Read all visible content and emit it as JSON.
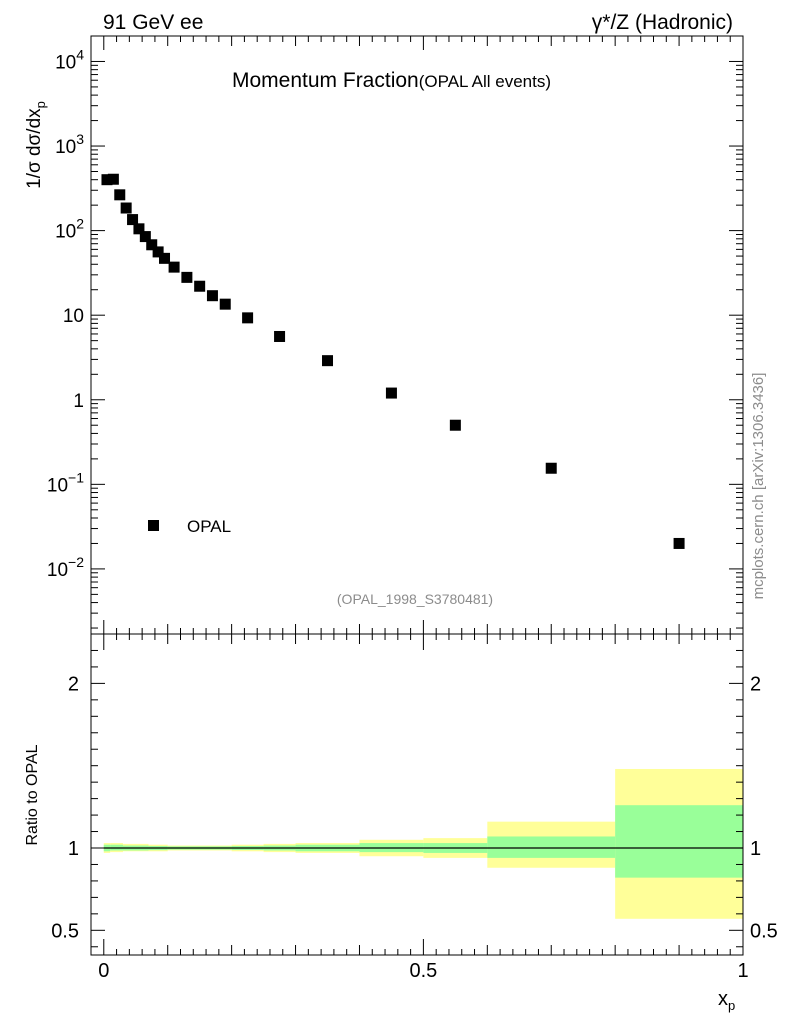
{
  "header": {
    "left": "91 GeV ee",
    "right": "γ*/Z (Hadronic)"
  },
  "plot_title": {
    "main": "Momentum Fraction",
    "sub": "(OPAL All events)"
  },
  "reference": "(OPAL_1998_S3780481)",
  "side_label": "mcplots.cern.ch [arXiv:1306.3436]",
  "axes": {
    "main_ylabel": {
      "base": "1/σ dσ/dx",
      "sub": "p"
    },
    "ratio_ylabel": "Ratio to OPAL",
    "xlabel": {
      "base": "x",
      "sub": "p"
    }
  },
  "colors": {
    "band_outer": "#ffff99",
    "band_inner": "#99ff99",
    "marker": "#000000",
    "text_grey": "#8c8c8c"
  },
  "chart_data": [
    {
      "type": "scatter",
      "name": "main",
      "yscale": "log",
      "xlim": [
        -0.02,
        1.0
      ],
      "ylim": [
        0.0017,
        20000
      ],
      "yticks_major": [
        {
          "value": 0.01,
          "base": "10",
          "exp": "−2"
        },
        {
          "value": 0.1,
          "base": "10",
          "exp": "−1"
        },
        {
          "value": 1,
          "base": "1",
          "exp": ""
        },
        {
          "value": 10,
          "base": "10",
          "exp": ""
        },
        {
          "value": 100,
          "base": "10",
          "exp": "2"
        },
        {
          "value": 1000,
          "base": "10",
          "exp": "3"
        },
        {
          "value": 10000,
          "base": "10",
          "exp": "4"
        }
      ],
      "legend": {
        "label": "OPAL",
        "placement": "bottom-left"
      },
      "series": [
        {
          "name": "OPAL",
          "x": [
            0.005,
            0.015,
            0.025,
            0.035,
            0.045,
            0.055,
            0.065,
            0.075,
            0.085,
            0.095,
            0.11,
            0.13,
            0.15,
            0.17,
            0.19,
            0.225,
            0.275,
            0.35,
            0.45,
            0.55,
            0.7,
            0.9
          ],
          "y": [
            400,
            405,
            265,
            185,
            135,
            105,
            85,
            68,
            56,
            47,
            37,
            28,
            22,
            17,
            13.5,
            9.3,
            5.6,
            2.9,
            1.2,
            0.5,
            0.155,
            0.02
          ]
        }
      ]
    },
    {
      "type": "area",
      "name": "ratio",
      "xlim": [
        -0.02,
        1.0
      ],
      "ylim": [
        0.35,
        2.3
      ],
      "yticks": [
        0.5,
        1,
        2
      ],
      "ytick_labels": [
        "0.5",
        "1",
        "2"
      ],
      "xticks": [
        0,
        0.5,
        1
      ],
      "xtick_labels": [
        "0",
        "0.5",
        "1"
      ],
      "reference_line": 1,
      "bands": [
        {
          "x0": 0.0,
          "x1": 0.01,
          "outer": [
            0.97,
            1.03
          ],
          "inner": [
            0.98,
            1.02
          ]
        },
        {
          "x0": 0.01,
          "x1": 0.03,
          "outer": [
            0.975,
            1.03
          ],
          "inner": [
            0.985,
            1.02
          ]
        },
        {
          "x0": 0.03,
          "x1": 0.07,
          "outer": [
            0.98,
            1.025
          ],
          "inner": [
            0.985,
            1.015
          ]
        },
        {
          "x0": 0.07,
          "x1": 0.1,
          "outer": [
            0.98,
            1.02
          ],
          "inner": [
            0.987,
            1.012
          ]
        },
        {
          "x0": 0.1,
          "x1": 0.2,
          "outer": [
            0.985,
            1.015
          ],
          "inner": [
            0.99,
            1.01
          ]
        },
        {
          "x0": 0.2,
          "x1": 0.25,
          "outer": [
            0.98,
            1.02
          ],
          "inner": [
            0.988,
            1.012
          ]
        },
        {
          "x0": 0.25,
          "x1": 0.3,
          "outer": [
            0.975,
            1.025
          ],
          "inner": [
            0.985,
            1.015
          ]
        },
        {
          "x0": 0.3,
          "x1": 0.4,
          "outer": [
            0.97,
            1.03
          ],
          "inner": [
            0.98,
            1.02
          ]
        },
        {
          "x0": 0.4,
          "x1": 0.5,
          "outer": [
            0.95,
            1.05
          ],
          "inner": [
            0.975,
            1.03
          ]
        },
        {
          "x0": 0.5,
          "x1": 0.6,
          "outer": [
            0.94,
            1.06
          ],
          "inner": [
            0.97,
            1.03
          ]
        },
        {
          "x0": 0.6,
          "x1": 0.8,
          "outer": [
            0.88,
            1.16
          ],
          "inner": [
            0.94,
            1.07
          ]
        },
        {
          "x0": 0.8,
          "x1": 1.0,
          "outer": [
            0.57,
            1.48
          ],
          "inner": [
            0.82,
            1.26
          ]
        }
      ]
    }
  ]
}
